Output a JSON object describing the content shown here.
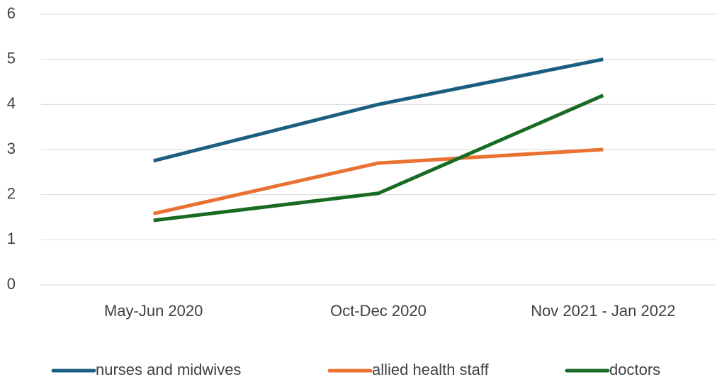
{
  "chart_data": {
    "type": "line",
    "categories": [
      "May-Jun 2020",
      "Oct-Dec 2020",
      "Nov 2021 - Jan 2022"
    ],
    "series": [
      {
        "name": "nurses and midwives",
        "color": "#1b5f80",
        "values": [
          2.75,
          4.0,
          5.0
        ]
      },
      {
        "name": "allied health staff",
        "color": "#e97132",
        "values": [
          1.58,
          2.7,
          3.0
        ]
      },
      {
        "name": "doctors",
        "color": "#196b24",
        "values": [
          1.43,
          2.03,
          4.2
        ]
      }
    ],
    "ylim": [
      0,
      6
    ],
    "yticks": [
      0,
      1,
      2,
      3,
      4,
      5,
      6
    ],
    "grid": true,
    "legend": "bottom"
  }
}
